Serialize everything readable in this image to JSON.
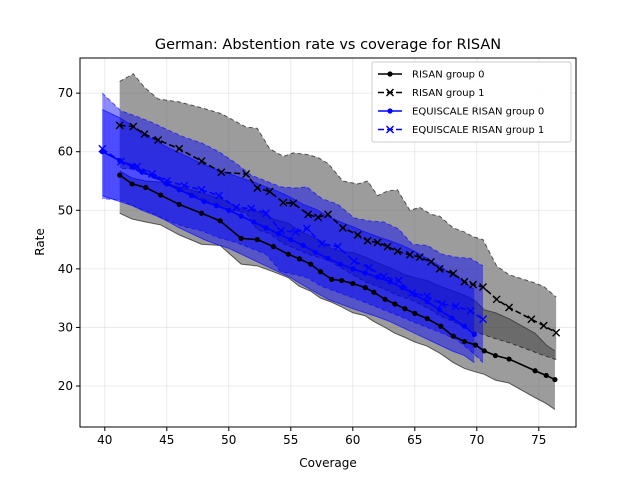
{
  "chart_data": {
    "type": "line",
    "title": "German: Abstention rate vs coverage for RISAN",
    "xlabel": "Coverage",
    "ylabel": "Rate",
    "xlim": [
      38,
      78
    ],
    "ylim": [
      13,
      76
    ],
    "xticks": [
      40,
      45,
      50,
      55,
      60,
      65,
      70,
      75
    ],
    "yticks": [
      20,
      30,
      40,
      50,
      60,
      70
    ],
    "grid": true,
    "legend_position": "upper-right",
    "series": [
      {
        "name": "RISAN group 0",
        "color": "#000000",
        "marker": "dot",
        "dashed": false,
        "x": [
          41.2,
          42.2,
          43.3,
          44.5,
          46.0,
          47.8,
          49.3,
          51.0,
          52.3,
          53.6,
          54.8,
          55.7,
          56.6,
          57.4,
          58.3,
          59.1,
          60.0,
          61.0,
          61.7,
          62.6,
          63.4,
          64.2,
          65.0,
          66.0,
          67.1,
          68.1,
          69.0,
          69.9,
          70.6,
          71.5,
          72.6,
          74.7,
          75.6,
          76.3
        ],
        "y": [
          56.0,
          54.5,
          53.9,
          52.6,
          51.0,
          49.5,
          48.2,
          45.2,
          45.0,
          43.8,
          42.5,
          41.7,
          40.8,
          39.5,
          38.2,
          38.0,
          37.5,
          36.8,
          36.0,
          34.8,
          34.0,
          33.2,
          32.4,
          31.5,
          30.2,
          28.5,
          27.6,
          27.0,
          26.0,
          25.2,
          24.6,
          22.6,
          21.8,
          21.1
        ],
        "band_upper": [
          56.7,
          55.5,
          55.0,
          54.8,
          54.0,
          53.0,
          52.0,
          50.2,
          49.8,
          48.5,
          47.8,
          46.5,
          45.6,
          44.8,
          43.5,
          43.0,
          42.8,
          42.0,
          41.3,
          40.5,
          39.8,
          39.0,
          38.5,
          38.0,
          37.0,
          36.2,
          35.5,
          34.5,
          33.0,
          32.5,
          31.5,
          29.0,
          27.0,
          26.0
        ],
        "band_lower": [
          49.5,
          48.5,
          48.0,
          47.5,
          45.8,
          44.2,
          44.0,
          40.8,
          40.5,
          39.5,
          38.5,
          37.0,
          36.2,
          35.0,
          34.3,
          33.5,
          32.5,
          32.0,
          31.0,
          30.0,
          29.0,
          28.3,
          27.5,
          26.8,
          25.5,
          24.0,
          23.0,
          22.4,
          22.0,
          21.0,
          20.5,
          18.0,
          17.0,
          16.0
        ]
      },
      {
        "name": "RISAN group 1",
        "color": "#000000",
        "marker": "x",
        "dashed": true,
        "x": [
          41.2,
          42.3,
          43.2,
          44.3,
          46.0,
          47.8,
          49.4,
          51.4,
          52.3,
          53.3,
          54.4,
          55.2,
          56.4,
          57.2,
          58.0,
          59.2,
          60.4,
          61.2,
          62.0,
          62.8,
          63.6,
          64.6,
          65.4,
          66.3,
          67.0,
          68.1,
          69.0,
          69.7,
          70.5,
          71.6,
          72.6,
          74.4,
          75.4,
          76.4
        ],
        "y": [
          64.5,
          64.3,
          63.0,
          62.0,
          60.5,
          58.4,
          56.5,
          56.2,
          53.8,
          53.2,
          51.3,
          51.2,
          49.3,
          48.8,
          49.3,
          47.0,
          45.8,
          44.8,
          44.5,
          43.8,
          43.0,
          42.4,
          42.0,
          41.2,
          40.0,
          39.2,
          37.8,
          37.3,
          36.9,
          34.8,
          33.4,
          31.4,
          30.3,
          29.1
        ],
        "band_upper": [
          72.0,
          73.3,
          71.0,
          69.0,
          68.5,
          67.5,
          66.5,
          64.2,
          64.0,
          60.5,
          59.2,
          59.8,
          59.5,
          59.0,
          58.0,
          55.0,
          54.5,
          55.0,
          52.5,
          53.3,
          53.5,
          50.0,
          50.5,
          49.3,
          49.0,
          47.0,
          46.3,
          45.5,
          45.0,
          40.5,
          39.0,
          37.8,
          37.0,
          35.2
        ],
        "band_lower": [
          57.2,
          57.0,
          56.2,
          55.2,
          53.7,
          52.0,
          50.5,
          49.5,
          46.7,
          46.0,
          44.3,
          43.6,
          42.5,
          42.0,
          41.5,
          40.0,
          38.5,
          37.6,
          37.0,
          36.3,
          35.5,
          34.8,
          34.0,
          33.0,
          32.0,
          31.0,
          30.0,
          29.3,
          28.8,
          28.0,
          27.4,
          26.0,
          25.2,
          24.5
        ]
      },
      {
        "name": "EQUISCALE RISAN group 0",
        "color": "#0000ff",
        "marker": "dot",
        "dashed": false,
        "x": [
          39.8,
          41.2,
          42.2,
          43.0,
          44.0,
          45.0,
          46.0,
          47.0,
          48.0,
          49.0,
          50.0,
          51.0,
          52.0,
          53.0,
          54.0,
          55.0,
          56.0,
          57.0,
          58.0,
          59.0,
          60.0,
          61.0,
          62.0,
          63.0,
          64.0,
          65.0,
          66.0,
          67.0,
          68.0,
          69.0,
          69.8
        ],
        "y": [
          60.0,
          58.5,
          57.5,
          56.5,
          55.8,
          54.5,
          53.5,
          52.5,
          51.5,
          50.8,
          50.0,
          49.0,
          48.0,
          47.0,
          46.0,
          45.0,
          44.0,
          42.8,
          41.8,
          40.8,
          40.0,
          39.3,
          38.6,
          37.8,
          36.8,
          35.6,
          34.4,
          33.0,
          31.6,
          30.2,
          28.8
        ],
        "band_upper": [
          67.2,
          65.8,
          64.5,
          63.0,
          62.0,
          60.8,
          59.8,
          58.8,
          57.8,
          57.0,
          56.3,
          55.5,
          54.8,
          54.0,
          53.2,
          52.2,
          51.0,
          50.2,
          49.0,
          48.0,
          47.2,
          46.3,
          45.5,
          44.8,
          44.0,
          43.0,
          41.8,
          40.5,
          39.0,
          37.8,
          36.5
        ],
        "band_lower": [
          52.5,
          51.5,
          50.8,
          50.0,
          49.2,
          48.2,
          47.0,
          46.0,
          45.0,
          44.2,
          43.5,
          42.5,
          41.5,
          40.5,
          39.5,
          38.5,
          37.2,
          36.0,
          34.8,
          34.0,
          33.2,
          32.5,
          31.8,
          31.0,
          30.0,
          29.0,
          28.0,
          27.0,
          26.0,
          25.2,
          24.0
        ]
      },
      {
        "name": "EQUISCALE RISAN group 1",
        "color": "#0000ff",
        "marker": "x",
        "dashed": true,
        "x": [
          39.8,
          41.3,
          42.6,
          43.8,
          45.0,
          46.4,
          47.8,
          49.2,
          50.6,
          51.8,
          53.0,
          54.2,
          55.4,
          56.3,
          57.5,
          58.8,
          60.1,
          61.3,
          62.5,
          63.7,
          64.8,
          66.0,
          67.2,
          68.3,
          69.5,
          70.5
        ],
        "y": [
          60.5,
          58.3,
          57.5,
          56.2,
          55.0,
          54.2,
          53.5,
          52.5,
          50.5,
          50.3,
          49.5,
          46.5,
          46.3,
          46.9,
          44.3,
          43.8,
          41.3,
          40.2,
          38.7,
          38.0,
          35.9,
          35.3,
          34.0,
          33.6,
          32.8,
          31.4
        ],
        "band_upper": [
          70.0,
          67.0,
          66.0,
          65.0,
          63.8,
          62.5,
          61.5,
          60.0,
          58.0,
          56.0,
          55.0,
          54.0,
          53.8,
          54.0,
          52.0,
          51.0,
          48.7,
          48.2,
          48.0,
          46.8,
          44.2,
          44.0,
          42.5,
          42.0,
          41.8,
          40.5
        ],
        "band_lower": [
          52.0,
          51.7,
          50.5,
          49.5,
          48.3,
          47.2,
          46.5,
          45.3,
          44.5,
          43.5,
          42.5,
          39.5,
          39.0,
          38.5,
          37.0,
          36.0,
          35.0,
          34.0,
          33.0,
          32.0,
          31.0,
          30.0,
          29.0,
          28.0,
          26.0,
          24.0
        ]
      }
    ]
  }
}
